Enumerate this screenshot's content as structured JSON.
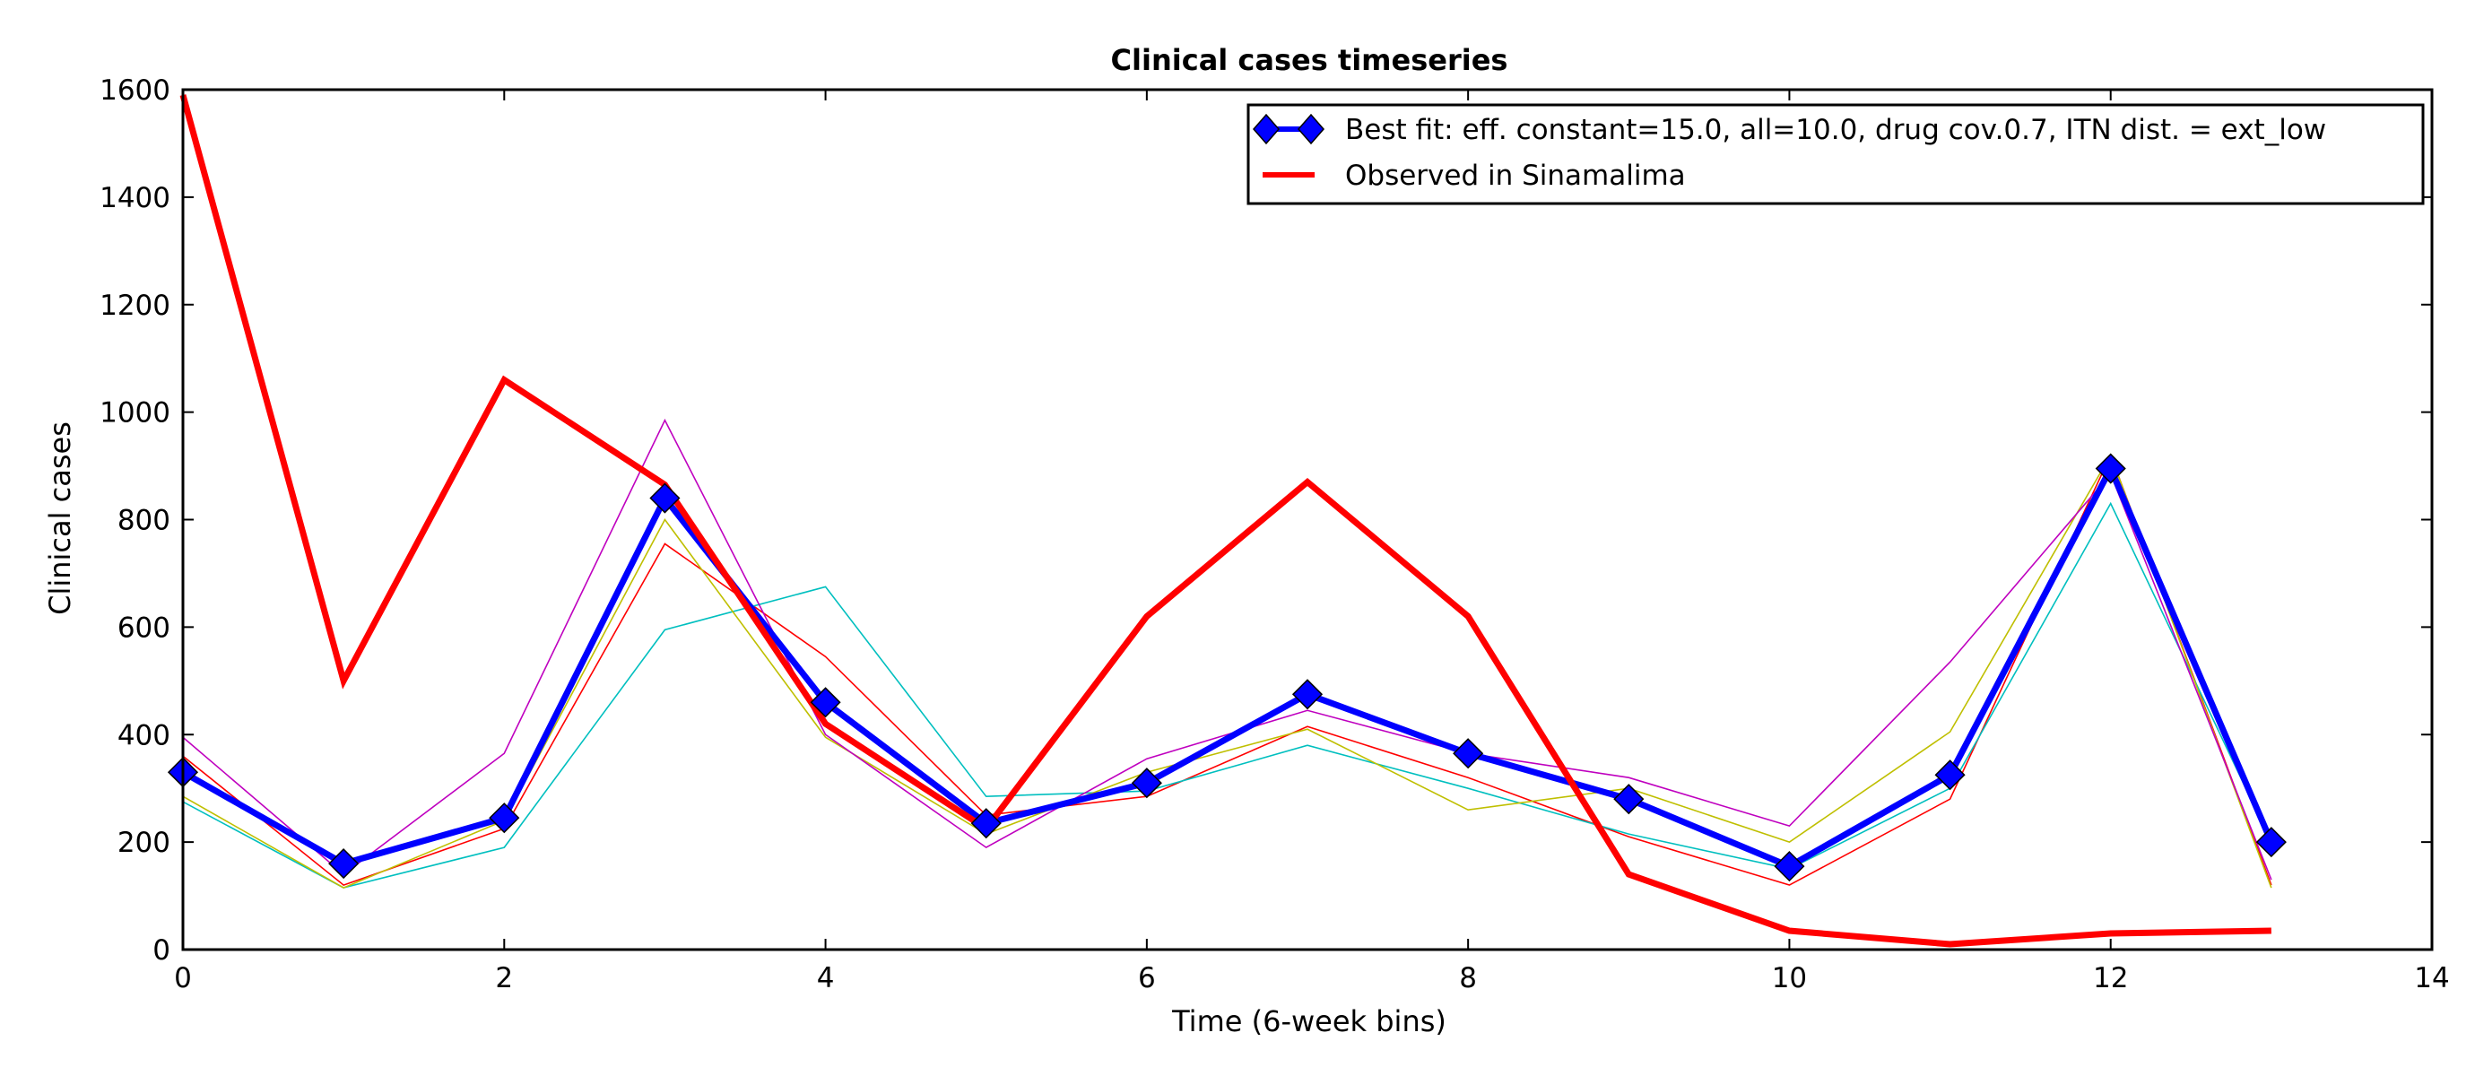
{
  "chart_data": {
    "type": "line",
    "title": "Clinical cases timeseries",
    "xlabel": "Time (6-week bins)",
    "ylabel": "Clinical cases",
    "xlim": [
      0,
      14
    ],
    "ylim": [
      0,
      1600
    ],
    "xticks": [
      0,
      2,
      4,
      6,
      8,
      10,
      12,
      14
    ],
    "yticks": [
      0,
      200,
      400,
      600,
      800,
      1000,
      1200,
      1400,
      1600
    ],
    "grid": false,
    "legend_position": "top-right",
    "x": [
      0,
      1,
      2,
      3,
      4,
      5,
      6,
      7,
      8,
      9,
      10,
      11,
      12,
      13
    ],
    "background_series": [
      {
        "color": "#ff0000",
        "values": [
          360,
          120,
          225,
          755,
          545,
          250,
          285,
          415,
          320,
          210,
          120,
          280,
          920,
          120
        ]
      },
      {
        "color": "#00bfbf",
        "values": [
          275,
          115,
          190,
          595,
          675,
          285,
          295,
          380,
          300,
          215,
          150,
          300,
          830,
          200
        ]
      },
      {
        "color": "#bfbf00",
        "values": [
          285,
          115,
          240,
          800,
          395,
          215,
          330,
          410,
          260,
          300,
          200,
          405,
          920,
          115
        ]
      },
      {
        "color": "#bf00bf",
        "values": [
          395,
          140,
          365,
          985,
          400,
          190,
          355,
          445,
          365,
          320,
          230,
          535,
          885,
          130
        ]
      }
    ],
    "series": [
      {
        "name": "Best fit: eff. constant=15.0, all=10.0, drug cov.0.7, ITN dist. = ext_low",
        "color": "#0000ff",
        "marker": "diamond",
        "values": [
          330,
          160,
          245,
          840,
          460,
          235,
          310,
          475,
          365,
          280,
          155,
          325,
          895,
          200
        ]
      },
      {
        "name": "Observed in Sinamalima",
        "color": "#ff0000",
        "marker": "none",
        "values": [
          1590,
          500,
          1060,
          865,
          420,
          225,
          620,
          870,
          620,
          140,
          35,
          10,
          30,
          35
        ]
      }
    ]
  }
}
